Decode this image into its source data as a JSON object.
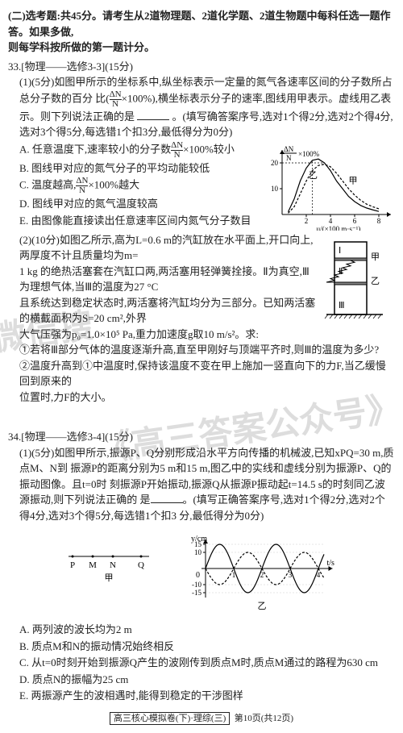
{
  "header": {
    "line1": "(二)选考题:共45分。请考生从2道物理题、2道化学题、2道生物题中每科任选一题作答。如果多做,",
    "line2": "则每学科按所做的第一题计分。"
  },
  "q33": {
    "title": "33.[物理——选修3-3](15分)",
    "p1_intro": "(1)(5分)如图甲所示的坐标系中,纵坐标表示一定量的氮气各速率区间的分子数所占总分子数的百分",
    "p1_cont": "比(",
    "frac_n": "ΔN",
    "frac_d": "N",
    "p1_cont2": "×100%),横坐标表示分子的速率,图线用甲表示。虚线用乙表示。则下列说法正确的是",
    "p1_tail": "。(填写确答案序号,选对1个得2分,选对2个得4分,选对3个得5分,每选错1个扣3分,最低得分为0分)",
    "optA": "A. 任意温度下,速率较小的分子数",
    "optA2": "×100%较小",
    "optB": "B. 图线甲对应的氮气分子的平均动能较低",
    "optC": "C. 温度越高,",
    "optC2": "×100%越大",
    "optD": "D. 图线甲对应的氮气温度较高",
    "optE": "E. 由图像能直接读出任意速率区间内氮气分子数目",
    "p2a": "(2)(10分)如图乙所示,高为L=0.6 m的汽缸放在水平面上,开口向上,两厚度不计且质量均为m=",
    "p2b": "1 kg 的绝热活塞套在汽缸口两,两活塞用轻弹簧拴接。Ⅱ为真空,Ⅲ为理想气体,当Ⅲ的温度为27 °C",
    "p2c": "且系统达到稳定状态时,两活塞将汽缸均分为三部分。已知两活塞的横截面积为S=20 cm²,外界",
    "p2d": "大气压强为p₀=1.0×10⁵ Pa,重力加速度g取10 m/s²。求:",
    "p2q1": "①若将Ⅲ部分气体的温度逐渐升高,直至甲刚好与顶端平齐时,则Ⅲ的温度为多少?",
    "p2q2": "②温度升高到①中温度时,保持该温度不变在甲上施加一竖直向下的力F,当乙缓慢回到原来的",
    "p2q3": "位置时,力F的大小。",
    "graph1": {
      "ylabel": "×100%",
      "yfrac_n": "ΔN",
      "yfrac_d": "N",
      "yticks": [
        10,
        20
      ],
      "xticks": [
        2,
        4,
        6,
        8
      ],
      "xlabel": "u/(×100 m·s⁻¹)",
      "label_jia": "甲",
      "label_yi": "乙",
      "curve_jia": [
        [
          0.5,
          1
        ],
        [
          1,
          6
        ],
        [
          1.5,
          13
        ],
        [
          2,
          18
        ],
        [
          2.5,
          21
        ],
        [
          3,
          21.5
        ],
        [
          3.5,
          20
        ],
        [
          4,
          17
        ],
        [
          4.5,
          13
        ],
        [
          5,
          10
        ],
        [
          5.5,
          7
        ],
        [
          6,
          5
        ],
        [
          6.5,
          3.5
        ],
        [
          7,
          2.5
        ],
        [
          7.5,
          1.8
        ],
        [
          8,
          1.2
        ]
      ],
      "curve_yi": [
        [
          0.5,
          0.5
        ],
        [
          1,
          3
        ],
        [
          1.5,
          8
        ],
        [
          2,
          13
        ],
        [
          2.5,
          17
        ],
        [
          3,
          19
        ],
        [
          3.5,
          19.5
        ],
        [
          4,
          18.5
        ],
        [
          4.5,
          16
        ],
        [
          5,
          13
        ],
        [
          5.5,
          10
        ],
        [
          6,
          7.5
        ],
        [
          6.5,
          5.5
        ],
        [
          7,
          4
        ],
        [
          7.5,
          3
        ],
        [
          8,
          2.2
        ]
      ],
      "line_color": "#000000",
      "dash_pattern": "3,2"
    },
    "cylinder": {
      "labels": [
        "甲",
        "Ⅰ",
        "乙",
        "Ⅱ",
        "Ⅲ"
      ],
      "label_yi_side": "乙"
    }
  },
  "q34": {
    "title": "34.[物理——选修3-4](15分)",
    "p1a": "(1)(5分)如图甲所示,振源P、Q分别形成沿水平方向传播的机械波,已知xPQ=30 m,质点M、N到",
    "p1b": "振源P的距离分别为5 m和15 m,图乙中的实线和虚线分别为振源P、Q的振动图像。且t=0时",
    "p1c": "刻振源P开始振动,振源Q从振源P振动起t=14.5 s的时刻同乙波源振动,则下列说法正确的",
    "p1d": "是",
    "p1e": "。(填写正确答案序号,选对1个得2分,选对2个得4分,选对3个得5分,每选错1个扣3",
    "p1f": "分,最低得分为0分)",
    "optA": "A. 两列波的波长均为2 m",
    "optB": "B. 质点M和N的振动情况始终相反",
    "optC": "C. 从t=0时刻开始到振源Q产生的波刚传到质点M时,质点M通过的路程为630 cm",
    "optD": "D. 质点N的振幅为25 cm",
    "optE": "E. 两振源产生的波相遇时,能得到稳定的干涉图样",
    "diag_jia": {
      "labels": [
        "P",
        "M",
        "N",
        "Q"
      ],
      "caption": "甲"
    },
    "graph2": {
      "ylabel": "y/cm",
      "yticks": [
        -15,
        -10,
        10,
        15
      ],
      "xticks": [
        1,
        2,
        3,
        4
      ],
      "xlabel": "t/s",
      "caption": "乙",
      "solid_amp": 15,
      "dash_amp": 10,
      "period": 2,
      "line_color": "#000000",
      "dash_pattern": "3,2"
    }
  },
  "footer": {
    "box": "高三核心模拟卷(下)·理综(三)",
    "page": "第10页(共12页)"
  },
  "watermark": {
    "part1": "微信搜",
    "part2": "《高三答案公众号》"
  }
}
